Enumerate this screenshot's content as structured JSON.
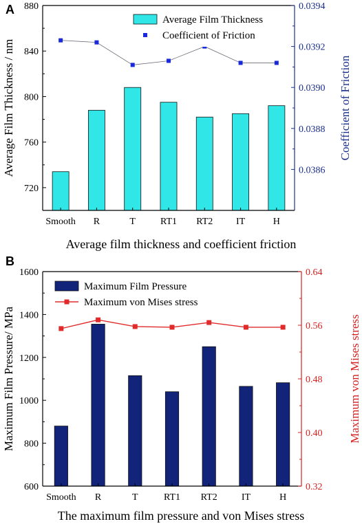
{
  "chart_data": [
    {
      "panel_label": "A",
      "type": "bar",
      "categories": [
        "Smooth",
        "R",
        "T",
        "RT1",
        "RT2",
        "IT",
        "H"
      ],
      "bar_series": {
        "name": "Average Film Thickness",
        "values": [
          734,
          788,
          808,
          795,
          782,
          785,
          792
        ],
        "color": "#30e6e6"
      },
      "line_series": {
        "name": "Coefficient of Friction",
        "values": [
          0.03923,
          0.03922,
          0.03911,
          0.03913,
          0.0392,
          0.03912,
          0.03912
        ],
        "color": "#1a2ad8"
      },
      "ylabel": "Average Film Thickness / nm",
      "y2label": "Coefficient of Friction",
      "ylim": [
        700,
        880
      ],
      "y2lim": [
        0.0384,
        0.0394
      ],
      "yticks": [
        "720",
        "760",
        "800",
        "840",
        "880"
      ],
      "y2ticks": [
        "0.0386",
        "0.0388",
        "0.0390",
        "0.0392",
        "0.0394"
      ],
      "caption": "Average film thickness and coefficient friction",
      "legend": "top-right",
      "grid": false
    },
    {
      "panel_label": "B",
      "type": "bar",
      "categories": [
        "Smooth",
        "R",
        "T",
        "RT1",
        "RT2",
        "IT",
        "H"
      ],
      "bar_series": {
        "name": "Maximum  Film Pressure",
        "values": [
          880,
          1355,
          1115,
          1040,
          1250,
          1065,
          1082
        ],
        "color": "#12237a"
      },
      "line_series": {
        "name": "Maximum von Mises stress",
        "values": [
          0.555,
          0.568,
          0.558,
          0.557,
          0.564,
          0.557,
          0.557
        ],
        "color": "#e12a2a"
      },
      "ylabel": "Maximum Film Pressure/ MPa",
      "y2label": "Maximum von Mises stress",
      "ylim": [
        600,
        1600
      ],
      "y2lim": [
        0.32,
        0.64
      ],
      "yticks": [
        "600",
        "800",
        "1000",
        "1200",
        "1400",
        "1600"
      ],
      "y2ticks": [
        "0.32",
        "0.40",
        "0.48",
        "0.56",
        "0.64"
      ],
      "caption": "The maximum film pressure and von Mises stress",
      "legend": "top-left",
      "grid": false
    }
  ]
}
